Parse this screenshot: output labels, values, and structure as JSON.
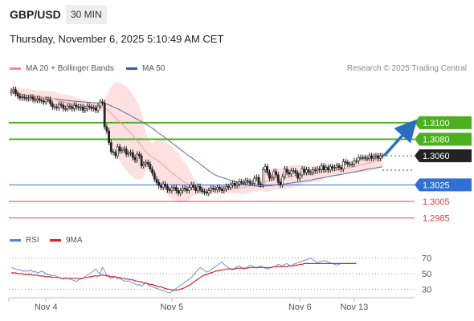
{
  "header": {
    "symbol": "GBP/USD",
    "timeframe": "30 MIN"
  },
  "timestamp": "Thursday, November 6, 2025 5:10:49 AM CET",
  "legend": {
    "ma20": {
      "label": "MA 20 + Bollinger Bands",
      "color": "#f08c8c"
    },
    "ma50": {
      "label": "MA 50",
      "color": "#3b5998"
    },
    "copyright": "Research © 2025 Trading Central"
  },
  "rsi_legend": {
    "rsi": {
      "label": "RSI",
      "color": "#5b7fd6"
    },
    "ma9": {
      "label": "9MA",
      "color": "#dd2222"
    }
  },
  "chart_data": {
    "type": "candlestick",
    "price_range": [
      1.2975,
      1.3155
    ],
    "levels": [
      {
        "label": "1.3100",
        "value": 1.31,
        "kind": "resistance",
        "color": "#4caf1e"
      },
      {
        "label": "1.3080",
        "value": 1.308,
        "kind": "resistance",
        "color": "#4caf1e"
      },
      {
        "label": "1.3060",
        "value": 1.306,
        "kind": "last",
        "color": "#222222"
      },
      {
        "label": "1.3025",
        "value": 1.3025,
        "kind": "pivot",
        "color": "#2f6fd6"
      },
      {
        "label": "1.3005",
        "value": 1.3005,
        "kind": "support",
        "color": "#e04040"
      },
      {
        "label": "1.2985",
        "value": 1.2985,
        "kind": "support",
        "color": "#e04040"
      }
    ],
    "close": [
      1.3138,
      1.314,
      1.3135,
      1.3132,
      1.313,
      1.3131,
      1.313,
      1.3129,
      1.313,
      1.3131,
      1.3128,
      1.3127,
      1.3129,
      1.3127,
      1.3126,
      1.3125,
      1.3128,
      1.3128,
      1.3123,
      1.3119,
      1.3119,
      1.3118,
      1.3122,
      1.3121,
      1.3117,
      1.3117,
      1.312,
      1.3119,
      1.3117,
      1.3121,
      1.3119,
      1.3118,
      1.3119,
      1.3115,
      1.3117,
      1.312,
      1.3119,
      1.3117,
      1.3118,
      1.3115,
      1.312,
      1.3125,
      1.3124,
      1.3095,
      1.309,
      1.3076,
      1.3065,
      1.3064,
      1.306,
      1.3071,
      1.3066,
      1.3067,
      1.3068,
      1.3062,
      1.3063,
      1.3064,
      1.3058,
      1.3055,
      1.3062,
      1.306,
      1.3048,
      1.305,
      1.3052,
      1.305,
      1.3044,
      1.3039,
      1.3032,
      1.3028,
      1.3024,
      1.3022,
      1.3026,
      1.3023,
      1.3019,
      1.3018,
      1.3021,
      1.3022,
      1.3018,
      1.3015,
      1.3018,
      1.3021,
      1.302,
      1.3018,
      1.3022,
      1.3025,
      1.3022,
      1.3018,
      1.3023,
      1.3019,
      1.3017,
      1.3016,
      1.3015,
      1.3018,
      1.3021,
      1.302,
      1.3019,
      1.3022,
      1.302,
      1.3018,
      1.302,
      1.3023,
      1.3022,
      1.3025,
      1.3027,
      1.3024,
      1.3026,
      1.3029,
      1.3028,
      1.3028,
      1.303,
      1.3029,
      1.3027,
      1.3027,
      1.3033,
      1.3034,
      1.3026,
      1.3025,
      1.3043,
      1.3047,
      1.304,
      1.3033,
      1.3034,
      1.3041,
      1.3037,
      1.3028,
      1.3025,
      1.3035,
      1.3044,
      1.304,
      1.3038,
      1.3042,
      1.3042,
      1.3039,
      1.3033,
      1.3037,
      1.3044,
      1.304,
      1.3043,
      1.304,
      1.304,
      1.3043,
      1.3042,
      1.3044,
      1.3043,
      1.3048,
      1.3043,
      1.3046,
      1.3043,
      1.3047,
      1.3045,
      1.3046,
      1.3048,
      1.3046,
      1.3044,
      1.3053,
      1.3052,
      1.305,
      1.305,
      1.305,
      1.3054,
      1.3054,
      1.3058,
      1.3058,
      1.3058,
      1.3057,
      1.3057,
      1.306,
      1.3057,
      1.3059,
      1.306,
      1.3057,
      1.306,
      1.306
    ],
    "x_labels": [
      {
        "label": "Nov 4",
        "index": 16
      },
      {
        "label": "Nov 5",
        "index": 74
      },
      {
        "label": "Nov 6",
        "index": 133
      },
      {
        "label": "Nov 13",
        "index": 158
      }
    ],
    "rsi": {
      "range": [
        20,
        80
      ],
      "levels": [
        70,
        50,
        30
      ],
      "values": [
        58,
        57,
        56,
        55,
        55,
        54,
        53,
        54,
        53,
        55,
        52,
        53,
        51,
        52,
        53,
        52,
        50,
        49,
        48,
        47,
        48,
        46,
        45,
        44,
        43,
        45,
        44,
        43,
        42,
        41,
        40,
        42,
        43,
        44,
        46,
        48,
        50,
        52,
        54,
        56,
        52,
        50,
        58,
        54,
        48,
        46,
        44,
        45,
        46,
        43,
        44,
        42,
        41,
        40,
        41,
        39,
        38,
        37,
        35,
        36,
        34,
        36,
        38,
        36,
        34,
        33,
        32,
        31,
        30,
        29,
        28,
        27,
        26,
        25,
        27,
        29,
        31,
        33,
        35,
        37,
        39,
        41,
        43,
        45,
        48,
        52,
        55,
        58,
        56,
        54,
        52,
        53,
        55,
        57,
        59,
        61,
        63,
        65,
        62,
        60,
        58,
        56,
        55,
        57,
        59,
        60,
        58,
        56,
        57,
        59,
        61,
        60,
        58,
        57,
        59,
        60,
        58,
        57,
        56,
        57,
        58,
        59,
        60,
        62,
        61,
        60,
        62,
        63,
        61,
        60,
        62,
        63,
        64,
        65,
        66,
        67,
        68,
        69,
        70,
        68,
        66,
        64,
        65,
        66,
        67,
        66,
        65,
        64,
        63,
        62,
        61,
        62,
        63,
        63,
        63,
        63,
        63,
        63,
        63,
        63
      ],
      "ma9": [
        51,
        51,
        51,
        50,
        50,
        50,
        49,
        49,
        49,
        49,
        48,
        48,
        48,
        47,
        47,
        47,
        46,
        46,
        46,
        45,
        45,
        45,
        45,
        44,
        44,
        44,
        44,
        44,
        44,
        44,
        44,
        44,
        44,
        44,
        45,
        45,
        46,
        46,
        47,
        47,
        47,
        48,
        48,
        48,
        47,
        47,
        46,
        46,
        46,
        45,
        45,
        44,
        44,
        43,
        43,
        42,
        42,
        41,
        40,
        40,
        39,
        38,
        38,
        37,
        36,
        36,
        35,
        34,
        33,
        33,
        32,
        31,
        30,
        30,
        29,
        29,
        29,
        29,
        30,
        31,
        32,
        34,
        35,
        37,
        39,
        41,
        43,
        45,
        47,
        48,
        49,
        50,
        51,
        52,
        53,
        54,
        54,
        55,
        55,
        56,
        56,
        56,
        56,
        56,
        57,
        57,
        57,
        57,
        57,
        57,
        58,
        58,
        58,
        58,
        58,
        58,
        58,
        58,
        58,
        58,
        58,
        59,
        59,
        59,
        59,
        59,
        59,
        59,
        60,
        60,
        60,
        61,
        61,
        62,
        62,
        63,
        63,
        63,
        63,
        63,
        63,
        63,
        63,
        63,
        63,
        63,
        63,
        63,
        63,
        63,
        63,
        63,
        63,
        63,
        63,
        63,
        63,
        63,
        63,
        63
      ]
    },
    "forecast_arrow": {
      "from_value": 1.306,
      "to_value": 1.31
    }
  }
}
